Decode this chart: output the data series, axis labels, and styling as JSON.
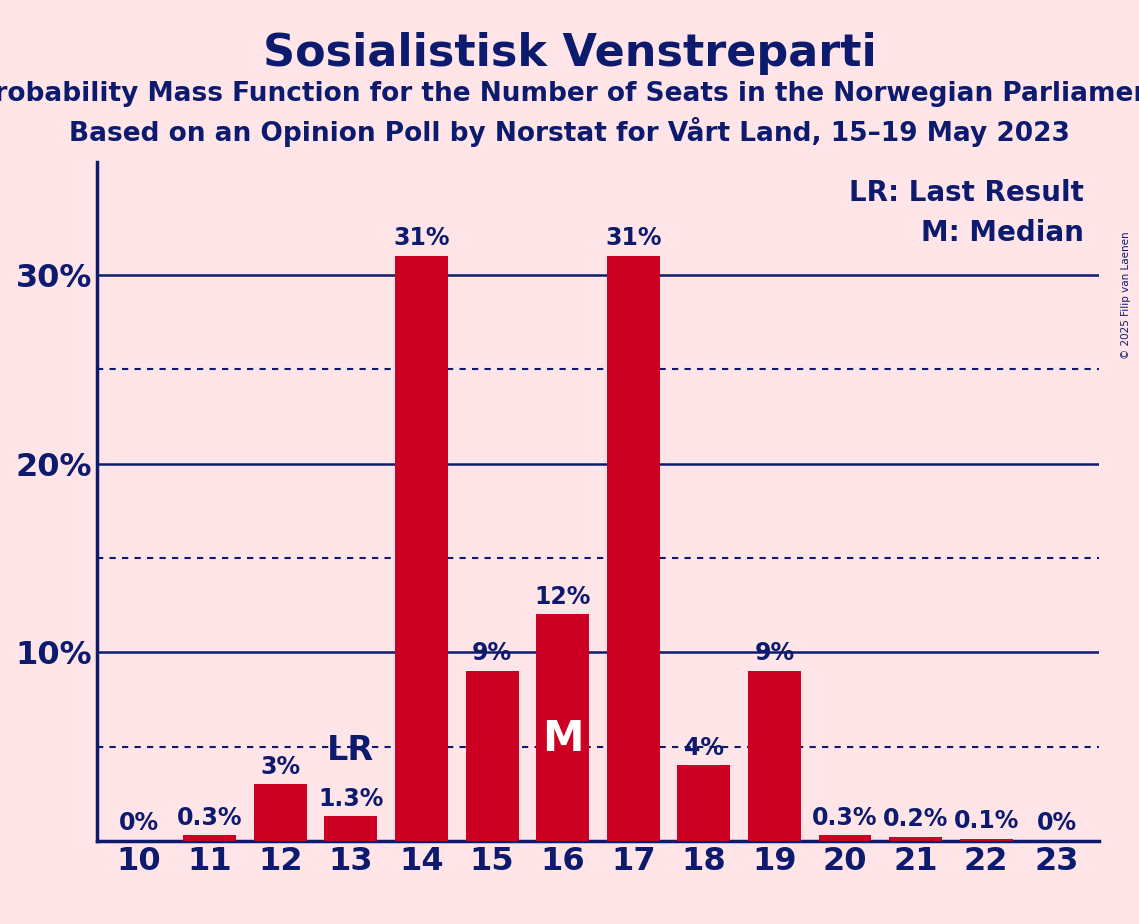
{
  "title": "Sosialistisk Venstreparti",
  "subtitle1": "Probability Mass Function for the Number of Seats in the Norwegian Parliament",
  "subtitle2": "Based on an Opinion Poll by Norstat for Vårt Land, 15–19 May 2023",
  "copyright": "© 2025 Filip van Laenen",
  "seats": [
    10,
    11,
    12,
    13,
    14,
    15,
    16,
    17,
    18,
    19,
    20,
    21,
    22,
    23
  ],
  "probs": [
    0.0,
    0.3,
    3.0,
    1.3,
    31.0,
    9.0,
    12.0,
    31.0,
    4.0,
    9.0,
    0.3,
    0.2,
    0.1,
    0.0
  ],
  "prob_labels": [
    "0%",
    "0.3%",
    "3%",
    "1.3%",
    "31%",
    "9%",
    "12%",
    "31%",
    "4%",
    "9%",
    "0.3%",
    "0.2%",
    "0.1%",
    "0%"
  ],
  "bar_color": "#CC0022",
  "lr_seat": 13,
  "median_seat": 16,
  "background_color": "#FFE4E8",
  "text_color": "#0D1B6E",
  "solid_lines": [
    10,
    20,
    30
  ],
  "dotted_lines": [
    5,
    15,
    25
  ],
  "ylim": [
    0,
    36
  ],
  "legend_lr": "LR: Last Result",
  "legend_m": "M: Median",
  "title_fontsize": 32,
  "subtitle_fontsize": 19,
  "axis_fontsize": 23,
  "bar_label_fontsize": 17,
  "lr_m_bar_fontsize": 24,
  "legend_fontsize": 20
}
